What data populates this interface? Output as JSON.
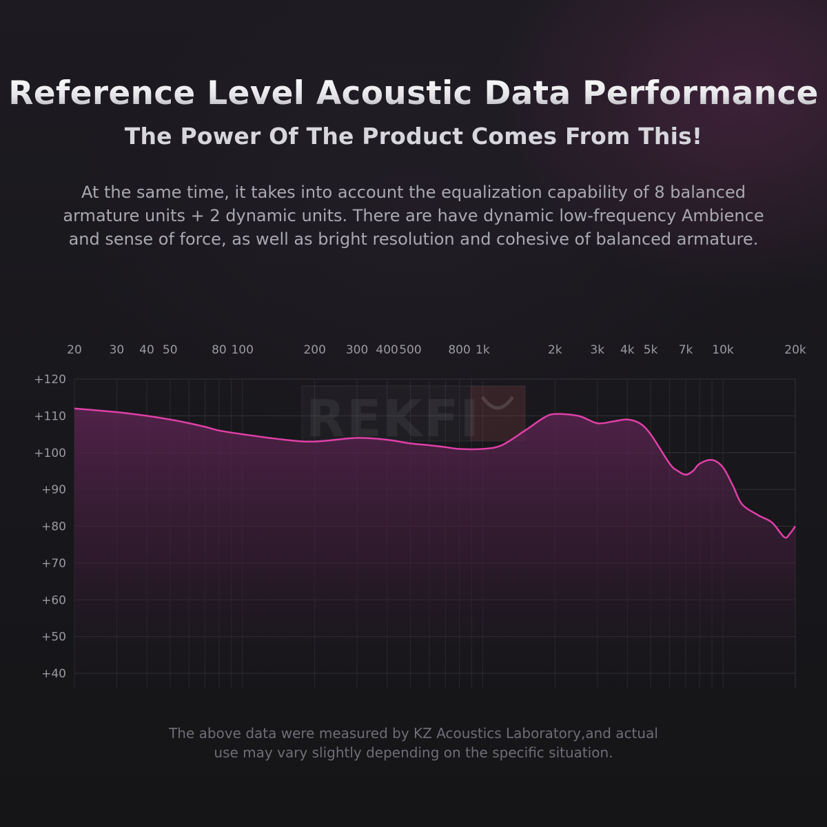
{
  "header": {
    "title": "Reference Level Acoustic Data Performance",
    "subtitle": "The Power Of The Product Comes From This!",
    "description_lines": [
      "At the same time, it takes into account the equalization capability of 8 balanced",
      "armature units + 2 dynamic units. There are have dynamic low-frequency Ambience",
      "and sense of force, as well as bright resolution and cohesive of balanced armature."
    ]
  },
  "watermark": {
    "text": "REKFI"
  },
  "footer": {
    "note_lines": [
      "The above data were measured by KZ Acoustics Laboratory,and actual",
      "use may vary slightly depending on the specific situation."
    ]
  },
  "colors": {
    "curve": "#e040a8",
    "fill_top": "#5a2450",
    "grid": "#3a3a40"
  },
  "chart_data": {
    "type": "area",
    "title": "",
    "xlabel": "",
    "ylabel": "",
    "x_scale": "log",
    "y_scale": "linear",
    "xlim": [
      20,
      20000
    ],
    "ylim": [
      40,
      120
    ],
    "grid": true,
    "legend": "none",
    "x_ticks": [
      {
        "value": 20,
        "label": "20"
      },
      {
        "value": 30,
        "label": "30"
      },
      {
        "value": 40,
        "label": "40"
      },
      {
        "value": 50,
        "label": "50"
      },
      {
        "value": 80,
        "label": "80"
      },
      {
        "value": 100,
        "label": "100"
      },
      {
        "value": 200,
        "label": "200"
      },
      {
        "value": 300,
        "label": "300"
      },
      {
        "value": 400,
        "label": "400"
      },
      {
        "value": 500,
        "label": "500"
      },
      {
        "value": 800,
        "label": "800"
      },
      {
        "value": 1000,
        "label": "1k"
      },
      {
        "value": 2000,
        "label": "2k"
      },
      {
        "value": 3000,
        "label": "3k"
      },
      {
        "value": 4000,
        "label": "4k"
      },
      {
        "value": 5000,
        "label": "5k"
      },
      {
        "value": 7000,
        "label": "7k"
      },
      {
        "value": 10000,
        "label": "10k"
      },
      {
        "value": 20000,
        "label": "20k"
      }
    ],
    "y_ticks": [
      {
        "value": 120,
        "label": "+120"
      },
      {
        "value": 110,
        "label": "+110"
      },
      {
        "value": 100,
        "label": "+100"
      },
      {
        "value": 90,
        "label": "+90"
      },
      {
        "value": 80,
        "label": "+80"
      },
      {
        "value": 70,
        "label": "+70"
      },
      {
        "value": 60,
        "label": "+60"
      },
      {
        "value": 50,
        "label": "+50"
      },
      {
        "value": 40,
        "label": "+40"
      }
    ],
    "series": [
      {
        "x": [
          20,
          30,
          40,
          50,
          60,
          70,
          80,
          100,
          150,
          200,
          300,
          400,
          500,
          600,
          700,
          800,
          1000,
          1200,
          1500,
          1800,
          2000,
          2500,
          3000,
          3500,
          4000,
          4500,
          5000,
          6000,
          6500,
          7000,
          7500,
          8000,
          9000,
          10000,
          11000,
          12000,
          14000,
          16000,
          18000,
          19000,
          20000
        ],
        "y": [
          112,
          111,
          110,
          109,
          108,
          107,
          106,
          105,
          103.5,
          103,
          104,
          103.5,
          102.5,
          102,
          101.5,
          101,
          101,
          102,
          106,
          109.5,
          110.5,
          110,
          108,
          108.5,
          109,
          108,
          105,
          97,
          95,
          94,
          95,
          97,
          98,
          96,
          91,
          86,
          83,
          81,
          77,
          78,
          80
        ]
      }
    ]
  }
}
